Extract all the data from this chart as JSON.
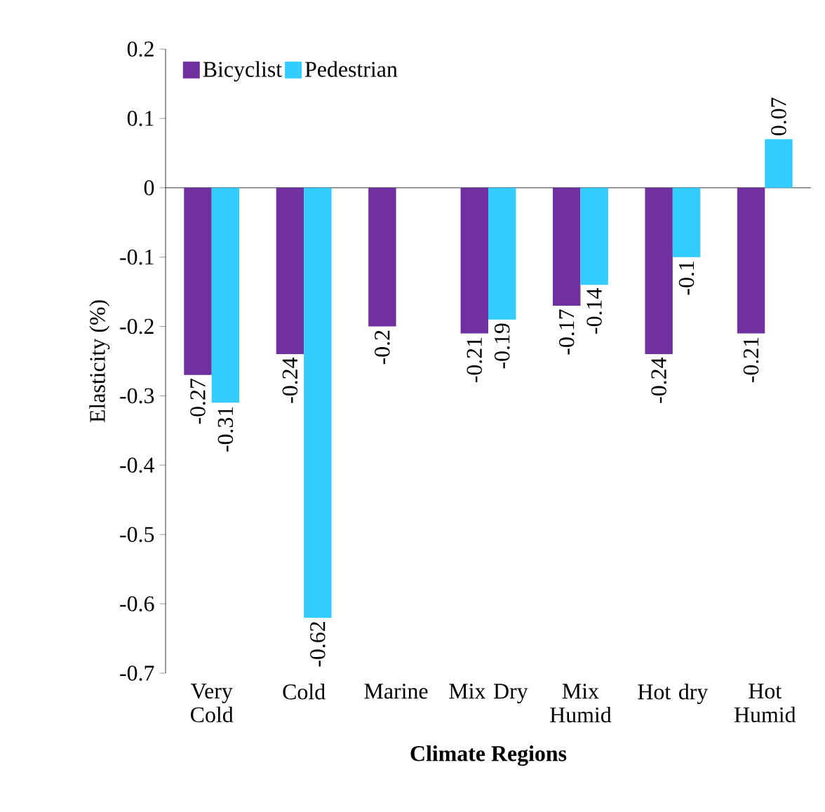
{
  "chart_data": {
    "type": "bar",
    "xlabel": "Climate Regions",
    "ylabel": "Elasticity (%)",
    "categories": [
      "Very Cold",
      "Cold",
      "Marine",
      "Mix Dry",
      "Mix Humid",
      "Hot dry",
      "Hot Humid"
    ],
    "series": [
      {
        "name": "Bicyclist",
        "color": "#7030a0",
        "values": [
          -0.27,
          -0.24,
          -0.2,
          -0.21,
          -0.17,
          -0.24,
          -0.21
        ]
      },
      {
        "name": "Pedestrian",
        "color": "#33ccff",
        "values": [
          -0.31,
          -0.62,
          null,
          -0.19,
          -0.14,
          -0.1,
          0.07
        ]
      }
    ],
    "ylim": [
      -0.7,
      0.2
    ],
    "yticks": [
      0.2,
      0.1,
      0,
      -0.1,
      -0.2,
      -0.3,
      -0.4,
      -0.5,
      -0.6,
      -0.7
    ],
    "data_labels": true,
    "legend": "top left"
  }
}
